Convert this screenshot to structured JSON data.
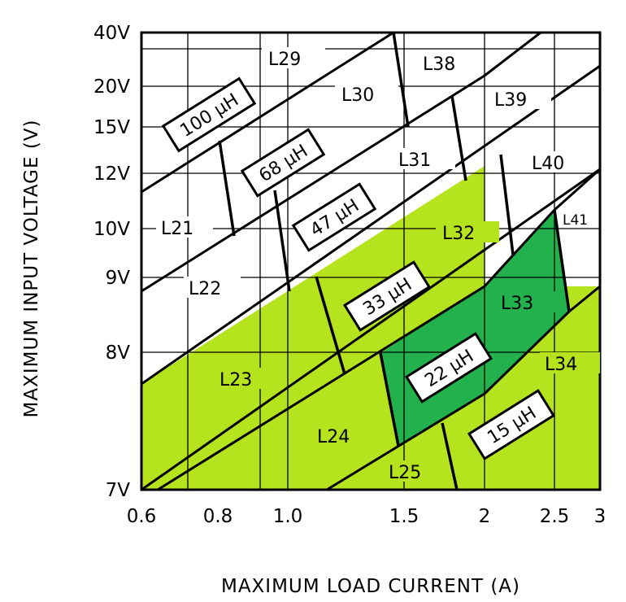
{
  "chart_data": {
    "type": "area",
    "xlabel": "MAXIMUM LOAD CURRENT (A)",
    "ylabel": "MAXIMUM INPUT VOLTAGE (V)",
    "x_scale": "log",
    "xlim": [
      0.6,
      3
    ],
    "ylim": [
      7,
      40
    ],
    "x_ticks": [
      "0.6",
      "0.8",
      "1.0",
      "1.5",
      "2",
      "2.5",
      "3"
    ],
    "y_ticks": [
      "40V",
      "20V",
      "15V",
      "12V",
      "10V",
      "9V",
      "8V",
      "7V"
    ],
    "grid": true,
    "colors": {
      "light_green": "#b5e31d",
      "dark_green": "#22b14c",
      "line": "#000000",
      "background": "#ffffff"
    },
    "inductance_labels": [
      "100 µH",
      "68 µH",
      "47 µH",
      "33 µH",
      "22 µH",
      "15 µH"
    ],
    "regions": [
      "L21",
      "L22",
      "L23",
      "L24",
      "L25",
      "L29",
      "L30",
      "L31",
      "L32",
      "L33",
      "L34",
      "L38",
      "L39",
      "L40",
      "L41"
    ],
    "shaded_light_regions": [
      "L23",
      "L24",
      "L25",
      "L32",
      "L34"
    ],
    "shaded_dark_regions": [
      "L33"
    ]
  }
}
